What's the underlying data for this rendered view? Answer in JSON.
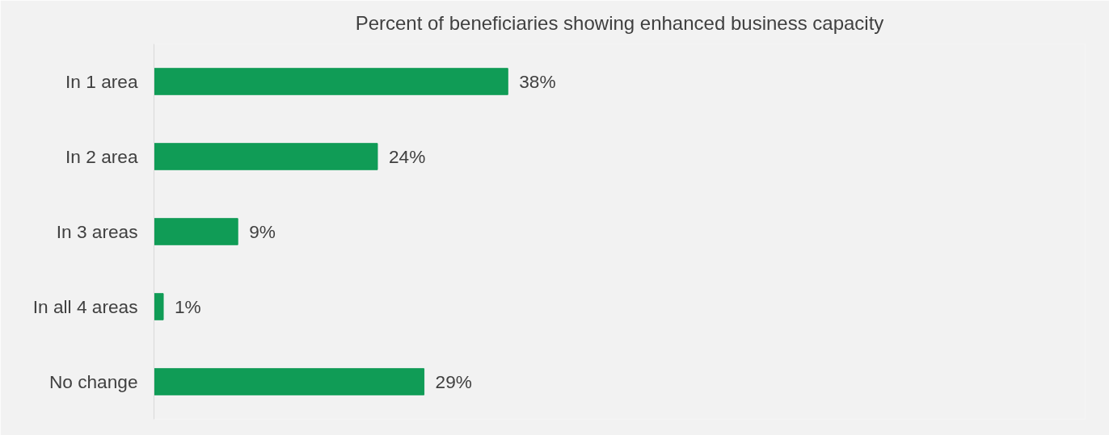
{
  "chart_data": {
    "type": "bar",
    "orientation": "horizontal",
    "title": "Percent of beneficiaries showing enhanced business capacity",
    "categories": [
      "In 1 area",
      "In 2 area",
      "In 3 areas",
      "In all 4 areas",
      "No change"
    ],
    "values": [
      38,
      24,
      9,
      1,
      29
    ],
    "value_labels": [
      "38%",
      "24%",
      "9%",
      "1%",
      "29%"
    ],
    "color": "#109c56",
    "xlim": [
      0,
      100
    ],
    "tick_labels": "y"
  }
}
